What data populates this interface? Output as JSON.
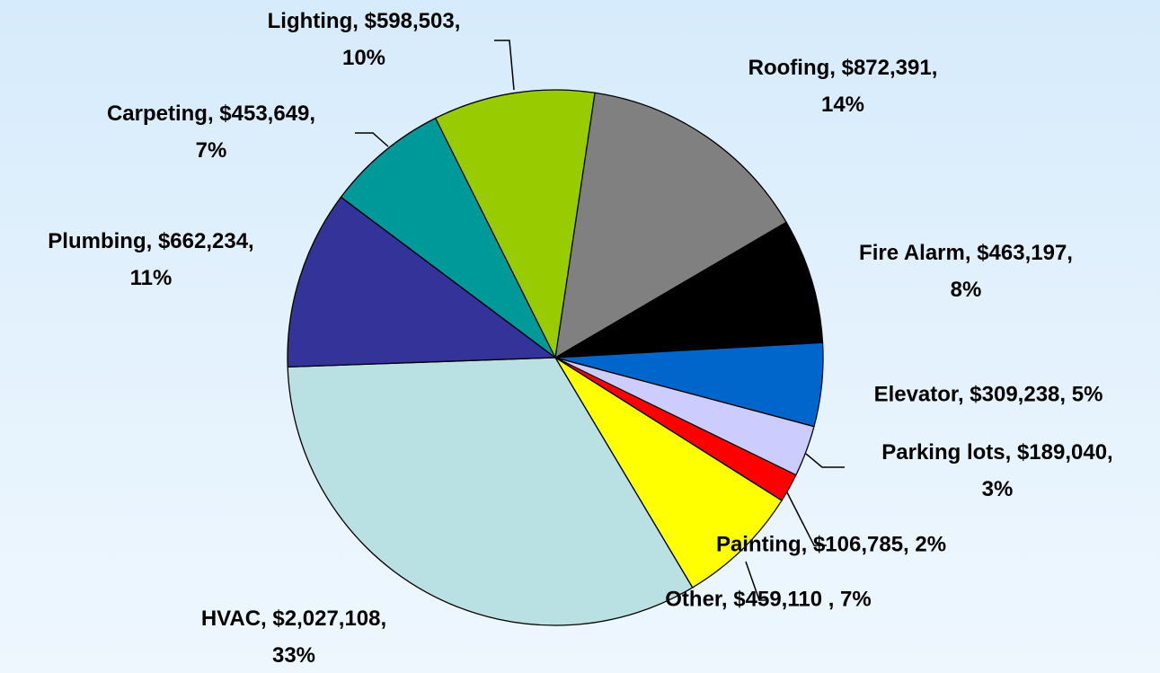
{
  "chart_data": {
    "type": "pie",
    "categories": [
      "Roofing",
      "Fire Alarm",
      "Elevator",
      "Parking lots",
      "Painting",
      "Other",
      "HVAC",
      "Plumbing",
      "Carpeting",
      "Lighting"
    ],
    "values": [
      872391,
      463197,
      309238,
      189040,
      106785,
      459110,
      2027108,
      662234,
      453649,
      598503
    ],
    "value_labels": [
      "Roofing, $872,391, 14%",
      "Fire Alarm, $463,197, 8%",
      "Elevator, $309,238, 5%",
      "Parking lots, $189,040, 3%",
      "Painting, $106,785, 2%",
      "Other, $459,110 , 7%",
      "HVAC, $2,027,108, 33%",
      "Plumbing, $662,234, 11%",
      "Carpeting, $453,649, 7%",
      "Lighting, $598,503, 10%"
    ],
    "colors": [
      "#808080",
      "#000000",
      "#0066cc",
      "#ccccff",
      "#ff0000",
      "#ffff00",
      "#b9e0e3",
      "#333399",
      "#009999",
      "#99cc00"
    ]
  }
}
